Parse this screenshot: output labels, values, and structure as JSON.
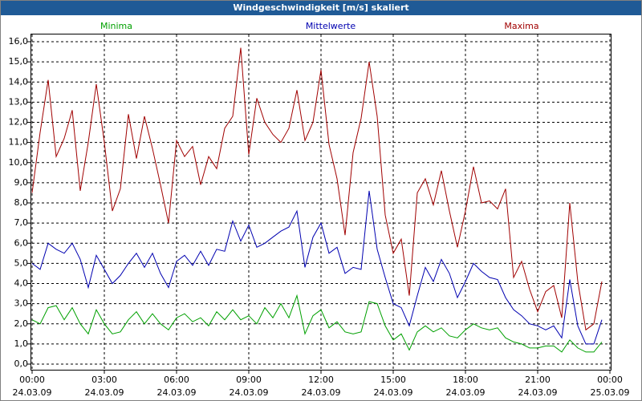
{
  "chart_data": {
    "type": "line",
    "title": "Windgeschwindigkeit [m/s] skaliert",
    "x": [
      0,
      20,
      40,
      60,
      80,
      100,
      120,
      140,
      160,
      180,
      200,
      220,
      240,
      260,
      280,
      300,
      320,
      340,
      360,
      380,
      400,
      420,
      440,
      460,
      480,
      500,
      520,
      540,
      560,
      580,
      600,
      620,
      640,
      660,
      680,
      700,
      720,
      740,
      760,
      780,
      800,
      820,
      840,
      860,
      880,
      900,
      920,
      940,
      960,
      980,
      1000,
      1020,
      1040,
      1060,
      1080,
      1100,
      1120,
      1140,
      1160,
      1180,
      1200,
      1220,
      1240,
      1260,
      1280,
      1300,
      1320,
      1340,
      1360,
      1380,
      1400,
      1420
    ],
    "series": [
      {
        "name": "Minima",
        "color": "#00a000",
        "values": [
          2.2,
          2.0,
          2.8,
          2.9,
          2.2,
          2.8,
          2.0,
          1.5,
          2.7,
          2.0,
          1.5,
          1.6,
          2.2,
          2.6,
          2.0,
          2.5,
          2.0,
          1.7,
          2.3,
          2.5,
          2.1,
          2.3,
          1.9,
          2.6,
          2.2,
          2.7,
          2.2,
          2.4,
          2.0,
          2.8,
          2.3,
          3.0,
          2.3,
          3.4,
          1.5,
          2.4,
          2.7,
          1.8,
          2.1,
          1.6,
          1.5,
          1.6,
          3.1,
          3.0,
          1.9,
          1.2,
          1.5,
          0.7,
          1.6,
          1.9,
          1.6,
          1.8,
          1.4,
          1.3,
          1.7,
          2.0,
          1.8,
          1.7,
          1.8,
          1.3,
          1.1,
          1.0,
          0.8,
          0.8,
          0.9,
          0.9,
          0.6,
          1.2,
          0.8,
          0.6,
          0.6,
          1.1
        ]
      },
      {
        "name": "Mittelwerte",
        "color": "#0000b0",
        "values": [
          5.0,
          4.7,
          6.0,
          5.7,
          5.5,
          6.0,
          5.2,
          3.8,
          5.4,
          4.7,
          4.0,
          4.4,
          5.0,
          5.5,
          4.8,
          5.5,
          4.5,
          3.8,
          5.1,
          5.4,
          4.9,
          5.6,
          4.9,
          5.7,
          5.6,
          7.1,
          6.1,
          6.9,
          5.8,
          6.0,
          6.3,
          6.6,
          6.8,
          7.6,
          4.8,
          6.3,
          7.0,
          5.5,
          5.8,
          4.5,
          4.8,
          4.7,
          8.6,
          5.7,
          4.3,
          3.0,
          2.8,
          1.9,
          3.4,
          4.8,
          4.1,
          5.2,
          4.5,
          3.3,
          4.1,
          5.0,
          4.6,
          4.3,
          4.2,
          3.3,
          2.7,
          2.4,
          2.0,
          1.9,
          1.7,
          1.9,
          1.3,
          4.2,
          1.9,
          1.0,
          1.0,
          2.2
        ]
      },
      {
        "name": "Maxima",
        "color": "#a00000",
        "values": [
          8.5,
          11.5,
          14.1,
          10.3,
          11.2,
          12.6,
          8.6,
          11.0,
          13.9,
          11.0,
          7.6,
          8.7,
          12.4,
          10.2,
          12.3,
          10.7,
          8.9,
          7.0,
          11.1,
          10.3,
          10.8,
          8.9,
          10.3,
          9.7,
          11.7,
          12.3,
          15.7,
          10.4,
          13.2,
          12.0,
          11.4,
          11.0,
          11.7,
          13.6,
          11.1,
          12.0,
          14.6,
          10.9,
          9.2,
          6.4,
          10.5,
          12.2,
          15.0,
          12.3,
          7.4,
          5.5,
          6.2,
          3.4,
          8.5,
          9.2,
          7.9,
          9.6,
          7.6,
          5.8,
          7.6,
          9.8,
          8.0,
          8.1,
          7.7,
          8.7,
          4.3,
          5.1,
          3.7,
          2.6,
          3.6,
          3.9,
          2.3,
          8.0,
          4.1,
          1.7,
          2.0,
          4.1
        ]
      }
    ],
    "xlim": [
      0,
      1440
    ],
    "xticks": [
      {
        "value": 0,
        "label": "00:00",
        "date": "24.03.09"
      },
      {
        "value": 180,
        "label": "03:00",
        "date": "24.03.09"
      },
      {
        "value": 360,
        "label": "06:00",
        "date": "24.03.09"
      },
      {
        "value": 540,
        "label": "09:00",
        "date": "24.03.09"
      },
      {
        "value": 720,
        "label": "12:00",
        "date": "24.03.09"
      },
      {
        "value": 900,
        "label": "15:00",
        "date": "24.03.09"
      },
      {
        "value": 1080,
        "label": "18:00",
        "date": "24.03.09"
      },
      {
        "value": 1260,
        "label": "21:00",
        "date": "24.03.09"
      },
      {
        "value": 1440,
        "label": "00:00",
        "date": "25.03.09"
      }
    ],
    "ylim": [
      0,
      16
    ],
    "yticks": [
      {
        "value": 0,
        "label": "0,0"
      },
      {
        "value": 1,
        "label": "1,0"
      },
      {
        "value": 2,
        "label": "2,0"
      },
      {
        "value": 3,
        "label": "3,0"
      },
      {
        "value": 4,
        "label": "4,0"
      },
      {
        "value": 5,
        "label": "5,0"
      },
      {
        "value": 6,
        "label": "6,0"
      },
      {
        "value": 7,
        "label": "7,0"
      },
      {
        "value": 8,
        "label": "8,0"
      },
      {
        "value": 9,
        "label": "9,0"
      },
      {
        "value": 10,
        "label": "10,0"
      },
      {
        "value": 11,
        "label": "11,0"
      },
      {
        "value": 12,
        "label": "12,0"
      },
      {
        "value": 13,
        "label": "13,0"
      },
      {
        "value": 14,
        "label": "14,0"
      },
      {
        "value": 15,
        "label": "15,0"
      },
      {
        "value": 16,
        "label": "16,0"
      }
    ],
    "grid": true
  }
}
